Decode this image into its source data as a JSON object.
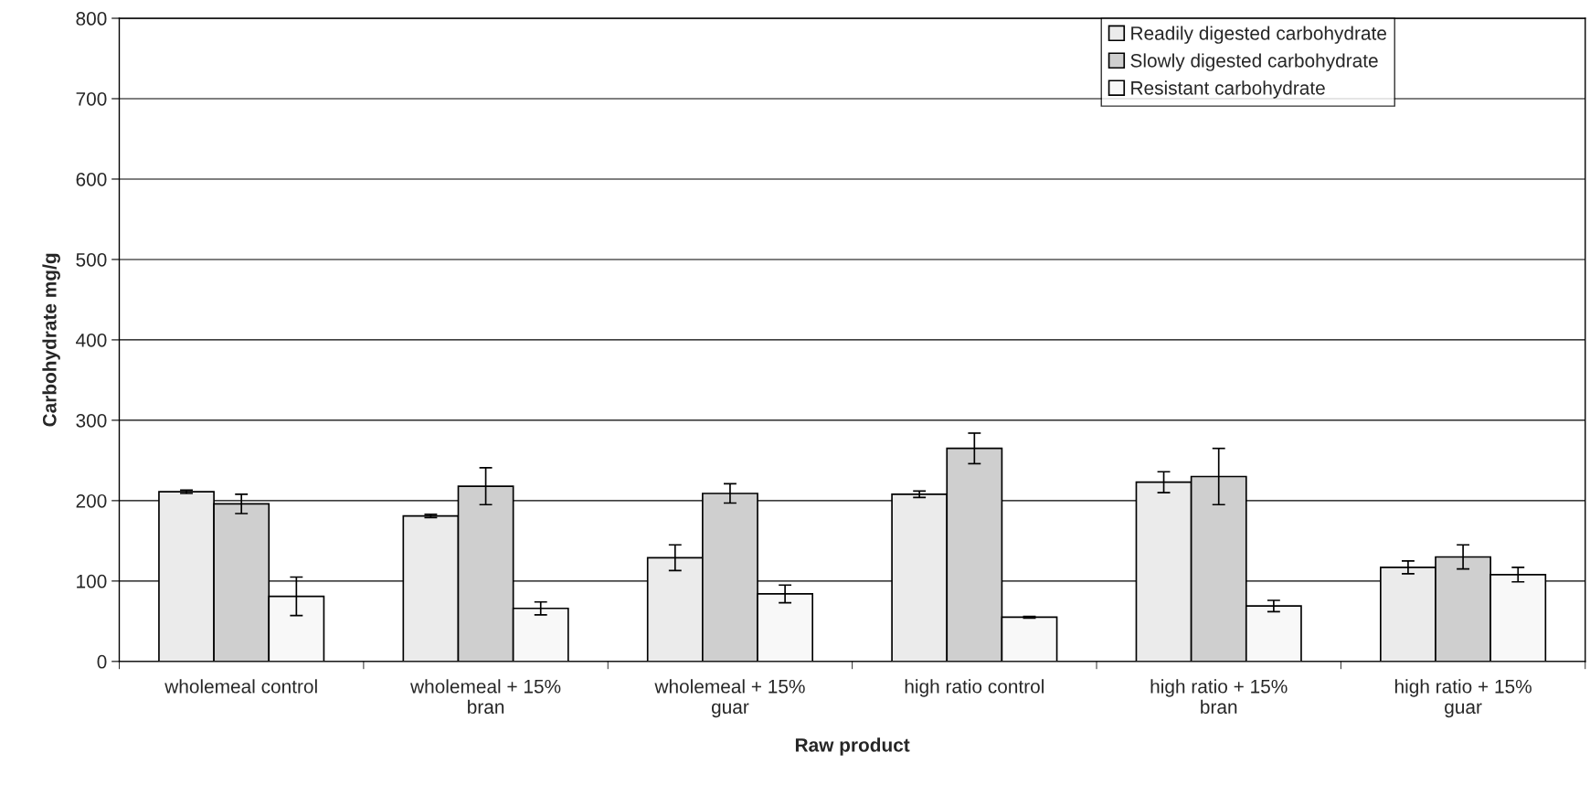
{
  "chart_data": {
    "type": "bar",
    "xlabel": "Raw product",
    "ylabel": "Carbohydrate mg/g",
    "categories": [
      "wholemeal control",
      "wholemeal + 15% bran",
      "wholemeal + 15% guar",
      "high ratio control",
      "high ratio + 15% bran",
      "high ratio + 15% guar"
    ],
    "series": [
      {
        "name": "Readily digested carbohydrate",
        "color": "#ebebeb",
        "values": [
          211,
          181,
          129,
          208,
          223,
          117
        ],
        "errors": [
          2,
          2,
          16,
          4,
          13,
          8
        ]
      },
      {
        "name": "Slowly digested carbohydrate",
        "color": "#cfcfcf",
        "values": [
          196,
          218,
          209,
          265,
          230,
          130
        ],
        "errors": [
          12,
          23,
          12,
          19,
          35,
          15
        ]
      },
      {
        "name": "Resistant carbohydrate",
        "color": "#f8f8f8",
        "values": [
          81,
          66,
          84,
          55,
          69,
          108
        ],
        "errors": [
          24,
          8,
          11,
          1,
          7,
          9
        ]
      }
    ],
    "ylim": [
      0,
      800
    ],
    "yticks": [
      0,
      100,
      200,
      300,
      400,
      500,
      600,
      700,
      800
    ],
    "grid": "y",
    "legend": "top right"
  }
}
